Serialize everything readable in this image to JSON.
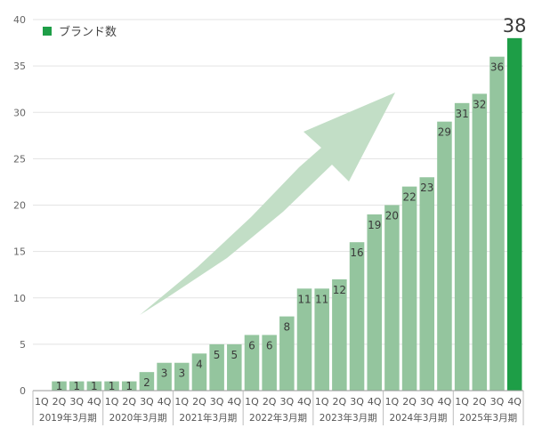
{
  "chart_data": {
    "type": "bar",
    "legend": {
      "label": "ブランド数",
      "position": "top-left"
    },
    "colors": {
      "bar": "#94c59e",
      "highlight": "#1e9e47",
      "arrow": "#c2dec6",
      "grid": "#e3e3e3",
      "axis": "#999999"
    },
    "ylim": [
      0,
      40
    ],
    "yticks": [
      "0",
      "5",
      "10",
      "15",
      "20",
      "25",
      "30",
      "35",
      "40"
    ],
    "grid": true,
    "categories": [
      "1Q",
      "2Q",
      "3Q",
      "4Q",
      "1Q",
      "2Q",
      "3Q",
      "4Q",
      "1Q",
      "2Q",
      "3Q",
      "4Q",
      "1Q",
      "2Q",
      "3Q",
      "4Q",
      "1Q",
      "2Q",
      "3Q",
      "4Q",
      "1Q",
      "2Q",
      "3Q",
      "4Q",
      "1Q",
      "2Q",
      "3Q",
      "4Q"
    ],
    "year_groups": [
      "2019年3月期",
      "2020年3月期",
      "2021年3月期",
      "2022年3月期",
      "2023年3月期",
      "2024年3月期",
      "2025年3月期"
    ],
    "series": [
      {
        "values": [
          null,
          1,
          1,
          1,
          1,
          1,
          2,
          3,
          3,
          4,
          5,
          5,
          6,
          6,
          8,
          11,
          11,
          12,
          16,
          19,
          20,
          22,
          23,
          29,
          31,
          32,
          36,
          38
        ]
      }
    ],
    "value_labels": [
      "",
      "1",
      "1",
      "1",
      "1",
      "1",
      "2",
      "3",
      "3",
      "4",
      "5",
      "5",
      "6",
      "6",
      "8",
      "11",
      "11",
      "12",
      "16",
      "19",
      "20",
      "22",
      "23",
      "29",
      "31",
      "32",
      "36",
      "38"
    ]
  }
}
